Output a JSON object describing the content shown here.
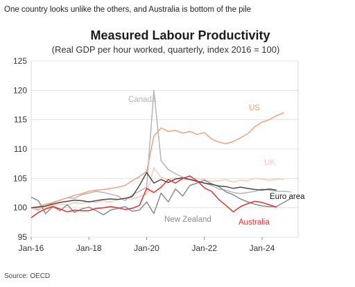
{
  "headline": "One country looks unlike the others, and Australia is bottom of the pile",
  "source": "Source: OECD",
  "chart_data": {
    "type": "line",
    "title": "Measured Labour Productivity",
    "subtitle": "(Real GDP per hour worked, quarterly, index 2016 = 100)",
    "xlabel": "",
    "ylabel": "",
    "ylim": [
      95,
      125
    ],
    "yticks": [
      95,
      100,
      105,
      110,
      115,
      120,
      125
    ],
    "xlim": [
      "2016-Q1",
      "2025-Q2"
    ],
    "xticks": [
      "Jan-16",
      "Jan-18",
      "Jan-20",
      "Jan-22",
      "Jan-24"
    ],
    "grid": "horizontal",
    "legend": "inline labels",
    "series": [
      {
        "name": "Canada",
        "color": "#b5b5b5",
        "start": "2016-Q1",
        "values": [
          100.0,
          99.6,
          100.3,
          100.8,
          101.3,
          101.7,
          101.6,
          102.2,
          102.5,
          102.8,
          102.6,
          102.3,
          102.0,
          101.2,
          102.2,
          102.8,
          103.5,
          120.0,
          108.0,
          106.5,
          105.8,
          105.2,
          104.8,
          104.6,
          104.2,
          103.8,
          103.2,
          103.0,
          102.6,
          102.4,
          102.6,
          102.8,
          103.2,
          103.0,
          102.8,
          102.8,
          102.7
        ]
      },
      {
        "name": "US",
        "color": "#f2a07e",
        "start": "2016-Q1",
        "values": [
          100.0,
          100.2,
          100.6,
          100.9,
          101.3,
          101.7,
          102.1,
          102.4,
          102.8,
          103.0,
          103.1,
          103.3,
          103.5,
          103.8,
          104.6,
          105.3,
          106.2,
          112.2,
          113.6,
          113.0,
          113.2,
          112.7,
          113.0,
          112.5,
          112.8,
          111.7,
          111.2,
          110.9,
          111.3,
          111.9,
          112.6,
          113.8,
          114.6,
          115.0,
          115.7,
          116.2
        ]
      },
      {
        "name": "UK",
        "color": "#f7cbb5",
        "start": "2016-Q1",
        "values": [
          100.0,
          99.8,
          100.1,
          100.3,
          100.6,
          100.5,
          100.9,
          100.7,
          101.1,
          100.9,
          101.2,
          101.0,
          101.4,
          101.6,
          101.5,
          101.9,
          102.3,
          106.8,
          105.2,
          104.8,
          105.1,
          104.7,
          104.9,
          105.0,
          104.8,
          104.5,
          104.6,
          104.8,
          104.4,
          104.7,
          104.6,
          105.0,
          104.9,
          104.7,
          104.9,
          104.8
        ]
      },
      {
        "name": "Euro area",
        "color": "#4a4a4a",
        "start": "2016-Q1",
        "values": [
          100.0,
          100.1,
          100.3,
          100.6,
          100.9,
          101.1,
          101.3,
          101.2,
          101.0,
          101.2,
          101.4,
          101.5,
          101.4,
          101.6,
          101.9,
          103.8,
          106.0,
          104.2,
          104.8,
          104.3,
          104.9,
          105.1,
          104.8,
          104.5,
          104.2,
          104.0,
          103.7,
          103.6,
          103.3,
          103.5,
          103.3,
          103.1,
          103.0,
          103.2,
          103.0
        ]
      },
      {
        "name": "New Zealand",
        "color": "#8a8a8a",
        "start": "2016-Q1",
        "values": [
          101.8,
          101.2,
          99.0,
          100.2,
          99.5,
          100.5,
          99.2,
          99.8,
          100.1,
          99.5,
          98.8,
          99.6,
          99.9,
          100.2,
          99.4,
          99.6,
          101.0,
          99.0,
          102.5,
          101.0,
          103.2,
          102.0,
          103.8,
          104.2,
          104.7,
          104.1,
          103.6,
          102.7,
          102.2,
          101.5,
          101.0,
          100.6,
          100.3,
          100.2,
          100.2,
          100.9,
          101.6
        ]
      },
      {
        "name": "Australia",
        "color": "#e03232",
        "start": "2016-Q1",
        "values": [
          98.3,
          99.2,
          99.8,
          100.2,
          99.8,
          99.3,
          99.6,
          99.5,
          99.5,
          99.9,
          100.0,
          100.2,
          100.0,
          99.7,
          99.9,
          100.4,
          103.3,
          102.6,
          103.5,
          104.8,
          104.2,
          105.0,
          105.4,
          104.6,
          103.4,
          102.8,
          101.4,
          100.4,
          99.3,
          100.2,
          100.7,
          101.1,
          100.9,
          100.5,
          100.1
        ]
      }
    ]
  }
}
